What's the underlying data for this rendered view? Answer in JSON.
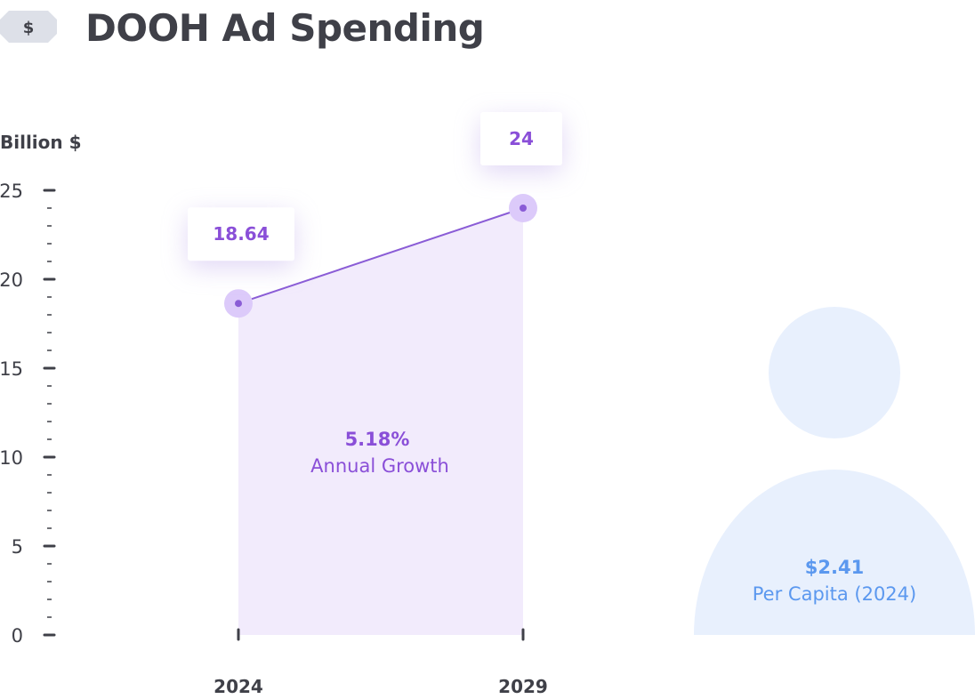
{
  "header": {
    "title": "DOOH Ad Spending",
    "icon": "dollar-bill-icon",
    "icon_symbol": "$"
  },
  "colors": {
    "title": "#3f4048",
    "axis": "#3f4048",
    "line": "#8a5cd6",
    "area": "#f2ebfc",
    "marker_halo": "#dccafa",
    "value_text": "#8a4fd8",
    "per_capita_shape": "#e8f0fd",
    "per_capita_text": "#5b98ef"
  },
  "chart_data": {
    "type": "area",
    "ylabel": "Billion $",
    "ylim": [
      0,
      25
    ],
    "yticks": [
      0,
      5,
      10,
      15,
      20,
      25
    ],
    "categories": [
      "2024",
      "2029"
    ],
    "values": [
      18.64,
      24
    ],
    "value_labels": [
      "18.64",
      "24"
    ],
    "annotation": {
      "value": "5.18%",
      "label": "Annual Growth"
    }
  },
  "per_capita": {
    "value": "$2.41",
    "label": "Per Capita (2024)",
    "icon": "person-icon"
  }
}
